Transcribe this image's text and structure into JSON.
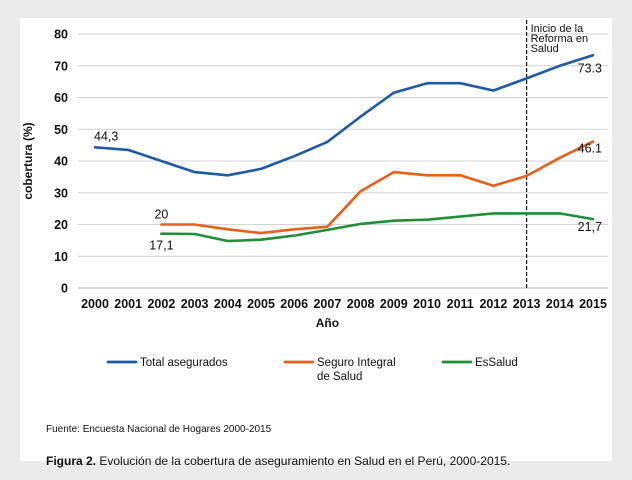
{
  "chart_data": {
    "type": "line",
    "x": [
      2000,
      2001,
      2002,
      2003,
      2004,
      2005,
      2006,
      2007,
      2008,
      2009,
      2010,
      2011,
      2012,
      2013,
      2014,
      2015
    ],
    "ylabel": "cobertura (%)",
    "xlabel": "Año",
    "ylim": [
      0,
      80
    ],
    "yticks": [
      "0",
      "10",
      "20",
      "30",
      "40",
      "50",
      "60",
      "70",
      "80"
    ],
    "grid": true,
    "legend_position": "bottom",
    "series": [
      {
        "name": "Total asegurados",
        "color": "#1f5aa6",
        "values": [
          44.3,
          43.5,
          40,
          36.5,
          35.5,
          37.5,
          41.5,
          46,
          54,
          61.5,
          64.5,
          64.5,
          62.2,
          66,
          70,
          73.3
        ]
      },
      {
        "name": "Seguro Integral de Salud",
        "name_lines": [
          "Seguro Integral",
          "de Salud"
        ],
        "color": "#e8601c",
        "values": [
          null,
          null,
          20,
          20,
          18.5,
          17.3,
          18.5,
          19.3,
          30.5,
          36.5,
          35.5,
          35.5,
          32.2,
          35.3,
          41,
          46.1
        ]
      },
      {
        "name": "EsSalud",
        "color": "#1f8f3a",
        "values": [
          null,
          null,
          17.1,
          17,
          14.8,
          15.2,
          16.5,
          18.3,
          20.2,
          21.2,
          21.5,
          22.5,
          23.5,
          23.5,
          23.5,
          21.7
        ]
      }
    ],
    "data_labels": [
      {
        "series": 0,
        "index": 0,
        "text": "44,3"
      },
      {
        "series": 0,
        "index": 15,
        "text": "73.3"
      },
      {
        "series": 1,
        "index": 2,
        "text": "20"
      },
      {
        "series": 1,
        "index": 15,
        "text": "46.1"
      },
      {
        "series": 2,
        "index": 2,
        "text": "17,1"
      },
      {
        "series": 2,
        "index": 15,
        "text": "21,7"
      }
    ],
    "reference_line": {
      "x": 2013,
      "style": "dashed",
      "label_lines": [
        "Inicio de la",
        "Reforma en",
        "Salud"
      ]
    }
  },
  "source": "Fuente: Encuesta Nacional de Hogares 2000-2015",
  "caption": {
    "bold": "Figura 2.",
    "text": " Evolución de la cobertura de aseguramiento en Salud en el Perú, 2000-2015."
  }
}
